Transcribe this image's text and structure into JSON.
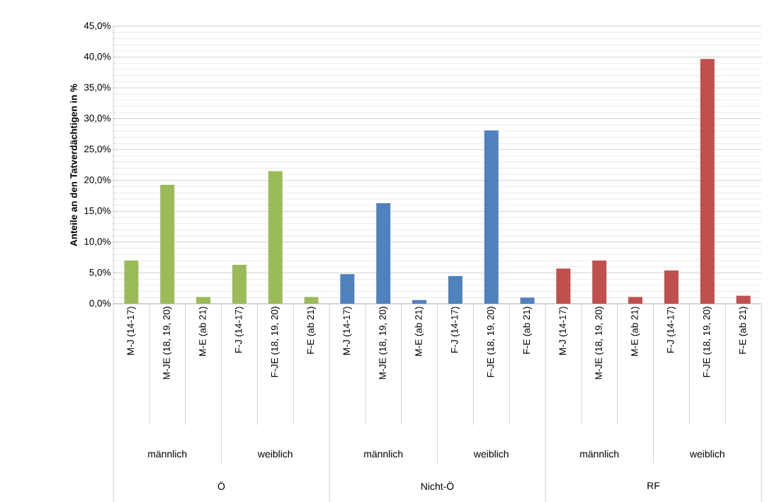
{
  "chart_data": {
    "type": "bar",
    "ylabel": "Anteile an den Tatverdächtigen in %",
    "categories": [
      "M-J (14-17)",
      "M-JE (18, 19, 20)",
      "M-E (ab 21)",
      "F-J (14-17)",
      "F-JE (18, 19, 20)",
      "F-E (ab 21)",
      "M-J (14-17)",
      "M-JE (18, 19, 20)",
      "M-E (ab 21)",
      "F-J (14-17)",
      "F-JE (18, 19, 20)",
      "F-E (ab 21)",
      "M-J (14-17)",
      "M-JE (18, 19, 20)",
      "M-E (ab 21)",
      "F-J (14-17)",
      "F-JE (18, 19, 20)",
      "F-E (ab 21)"
    ],
    "values": [
      7.0,
      19.3,
      1.1,
      6.3,
      21.5,
      1.1,
      4.8,
      16.3,
      0.6,
      4.5,
      28.1,
      1.0,
      5.7,
      7.0,
      1.1,
      5.4,
      39.7,
      1.3
    ],
    "colors": [
      "#9bbb59",
      "#9bbb59",
      "#9bbb59",
      "#9bbb59",
      "#9bbb59",
      "#9bbb59",
      "#4f81bd",
      "#4f81bd",
      "#4f81bd",
      "#4f81bd",
      "#4f81bd",
      "#4f81bd",
      "#c0504d",
      "#c0504d",
      "#c0504d",
      "#c0504d",
      "#c0504d",
      "#c0504d"
    ],
    "ylim": [
      0,
      45
    ],
    "yticks": [
      {
        "value": 0,
        "label": "0,0%"
      },
      {
        "value": 5,
        "label": "5,0%"
      },
      {
        "value": 10,
        "label": "10,0%"
      },
      {
        "value": 15,
        "label": "15,0%"
      },
      {
        "value": 20,
        "label": "20,0%"
      },
      {
        "value": 25,
        "label": "25,0%"
      },
      {
        "value": 30,
        "label": "30,0%"
      },
      {
        "value": 35,
        "label": "35,0%"
      },
      {
        "value": 40,
        "label": "40,0%"
      },
      {
        "value": 45,
        "label": "45,0%"
      }
    ],
    "grid": true,
    "annotations": [
      "männlich",
      "weiblich",
      "männlich",
      "weiblich",
      "männlich",
      "weiblich",
      "Ö",
      "Nicht-Ö",
      "RF"
    ]
  }
}
